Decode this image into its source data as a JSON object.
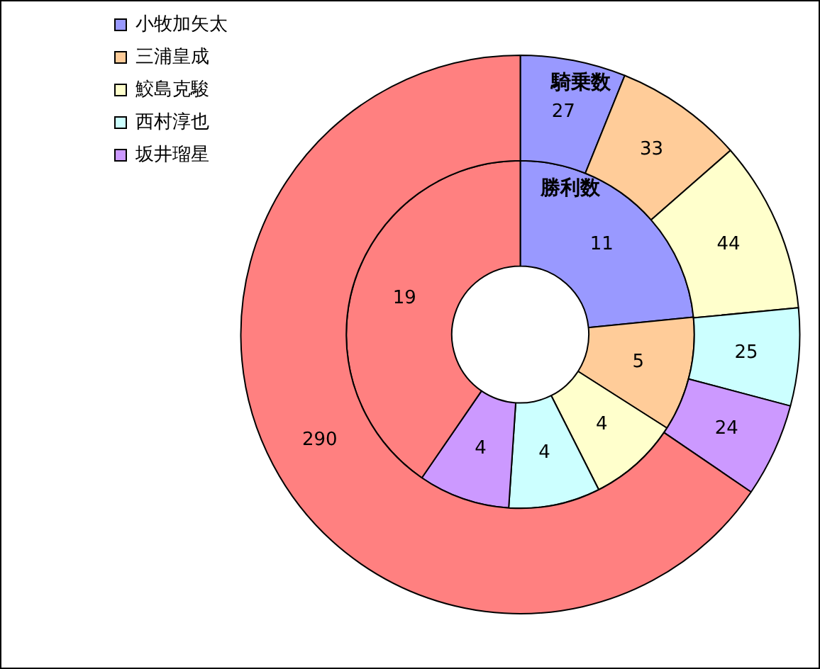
{
  "chart_data": {
    "type": "donut",
    "categories": [
      "小牧加矢太",
      "三浦皇成",
      "鮫島克駿",
      "西村淳也",
      "坂井瑠星",
      null
    ],
    "colors": [
      "#9999ff",
      "#ffcc99",
      "#ffffcc",
      "#ccffff",
      "#cc99ff",
      "#ff8080"
    ],
    "series": [
      {
        "name": "騎乗数",
        "values": [
          27,
          33,
          44,
          25,
          24,
          290
        ]
      },
      {
        "name": "勝利数",
        "values": [
          11,
          5,
          4,
          4,
          4,
          19
        ]
      }
    ],
    "data_labels": true,
    "legend": "top left"
  }
}
